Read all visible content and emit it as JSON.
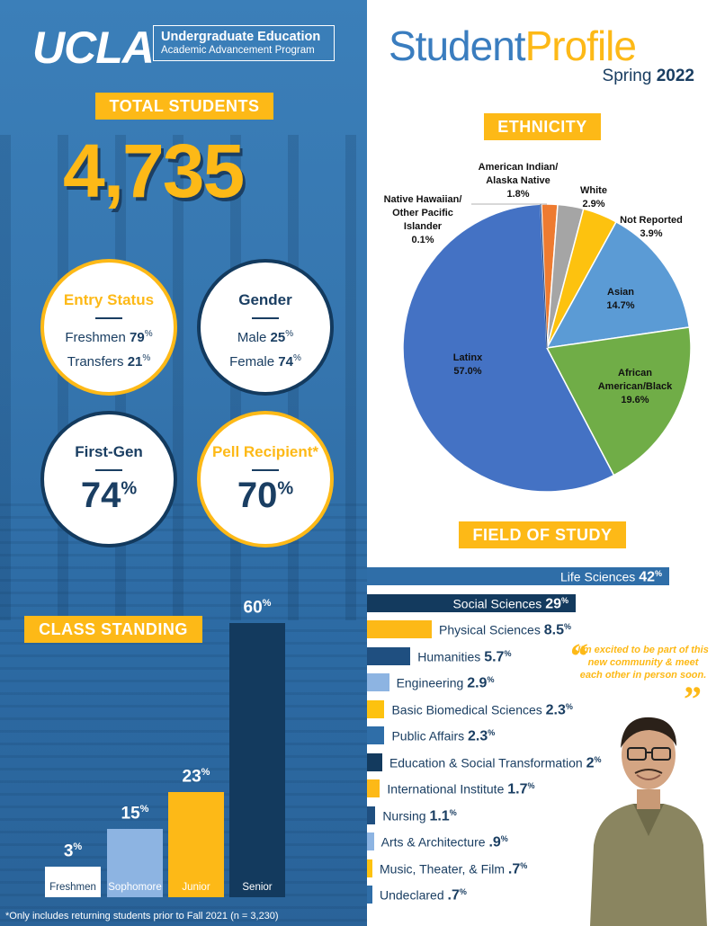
{
  "header": {
    "logo_text": "UCLA",
    "program_title": "Undergraduate Education",
    "program_subtitle": "Academic Advancement Program",
    "title_part1": "Student",
    "title_part2": "Profile",
    "term": "Spring",
    "year": "2022"
  },
  "total": {
    "label": "TOTAL STUDENTS",
    "value": "4,735"
  },
  "entry_status": {
    "title": "Entry Status",
    "rows": [
      {
        "label": "Freshmen",
        "value": "79",
        "unit": "%"
      },
      {
        "label": "Transfers",
        "value": "21",
        "unit": "%"
      }
    ]
  },
  "gender": {
    "title": "Gender",
    "rows": [
      {
        "label": "Male",
        "value": "25",
        "unit": "%"
      },
      {
        "label": "Female",
        "value": "74",
        "unit": "%"
      }
    ]
  },
  "first_gen": {
    "title": "First-Gen",
    "value": "74",
    "unit": "%"
  },
  "pell": {
    "title": "Pell Recipient*",
    "value": "70",
    "unit": "%"
  },
  "colors": {
    "yellow": "#fdb917",
    "navy": "#133a5e",
    "blue": "#2f6ea8",
    "light_blue": "#8db4e2"
  },
  "chart_data": [
    {
      "type": "pie",
      "title": "ETHNICITY",
      "slices": [
        {
          "label": "American Indian/ Alaska Native",
          "value": 1.8,
          "display": "1.8%",
          "color": "#ee7b30"
        },
        {
          "label": "White",
          "value": 2.9,
          "display": "2.9%",
          "color": "#a5a5a5"
        },
        {
          "label": "Not Reported",
          "value": 3.9,
          "display": "3.9%",
          "color": "#fdc20f"
        },
        {
          "label": "Asian",
          "value": 14.7,
          "display": "14.7%",
          "color": "#5b9bd5"
        },
        {
          "label": "African American/Black",
          "value": 19.6,
          "display": "19.6%",
          "color": "#70ad47"
        },
        {
          "label": "Latinx",
          "value": 57.0,
          "display": "57.0%",
          "color": "#4472c4"
        },
        {
          "label": "Native Hawaiian/ Other Pacific Islander",
          "value": 0.1,
          "display": "0.1%",
          "color": "#264478"
        }
      ]
    },
    {
      "type": "bar",
      "title": "CLASS STANDING",
      "categories": [
        "Freshmen",
        "Sophomore",
        "Junior",
        "Senior"
      ],
      "values": [
        3,
        15,
        23,
        60
      ],
      "display": [
        "3",
        "15",
        "23",
        "60"
      ],
      "unit": "%",
      "colors": [
        "#ffffff",
        "#8db4e2",
        "#fdb917",
        "#133a5e"
      ],
      "label_colors": [
        "#1a3e62",
        "#ffffff",
        "#ffffff",
        "#ffffff"
      ]
    },
    {
      "type": "bar",
      "orientation": "horizontal",
      "title": "FIELD OF STUDY",
      "unit": "%",
      "bars": [
        {
          "label": "Life Sciences",
          "value": 42,
          "display": "42",
          "color": "#2f6ea8"
        },
        {
          "label": "Social Sciences",
          "value": 29,
          "display": "29",
          "color": "#133a5e"
        },
        {
          "label": "Physical Sciences",
          "value": 8.5,
          "display": "8.5",
          "color": "#fdb917"
        },
        {
          "label": "Humanities",
          "value": 5.7,
          "display": "5.7",
          "color": "#1f4f80"
        },
        {
          "label": "Engineering",
          "value": 2.9,
          "display": "2.9",
          "color": "#8db4e2"
        },
        {
          "label": "Basic Biomedical Sciences",
          "value": 2.3,
          "display": "2.3",
          "color": "#fdc20f"
        },
        {
          "label": "Public Affairs",
          "value": 2.3,
          "display": "2.3",
          "color": "#2f6ea8"
        },
        {
          "label": "Education & Social Transformation",
          "value": 2,
          "display": "2",
          "color": "#133a5e"
        },
        {
          "label": "International Institute",
          "value": 1.7,
          "display": "1.7",
          "color": "#fdb917"
        },
        {
          "label": "Nursing",
          "value": 1.1,
          "display": "1.1",
          "color": "#1f4f80"
        },
        {
          "label": "Arts & Architecture",
          "value": 0.9,
          "display": ".9",
          "color": "#8db4e2"
        },
        {
          "label": "Music, Theater, & Film",
          "value": 0.7,
          "display": ".7",
          "color": "#fdc20f"
        },
        {
          "label": "Undeclared",
          "value": 0.7,
          "display": ".7",
          "color": "#2f6ea8"
        }
      ]
    }
  ],
  "footnote": "*Only includes returning students prior to Fall 2021 (n = 3,230)",
  "quote": "I'm excited to be part of this new community & meet each other in person soon."
}
